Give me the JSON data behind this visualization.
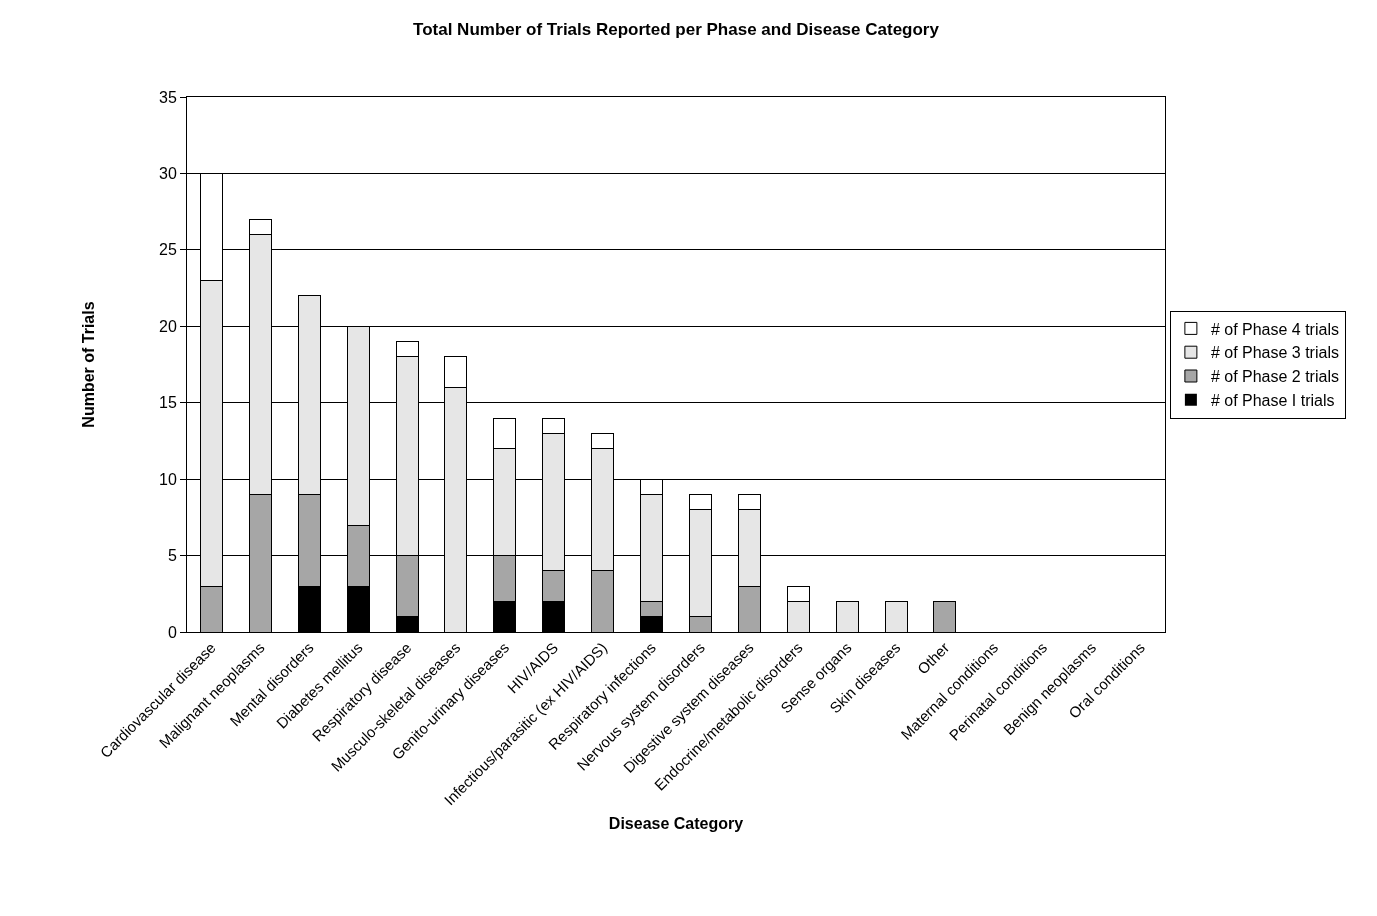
{
  "chart_data": {
    "type": "bar",
    "title": "Total Number of Trials Reported per Phase and Disease Category",
    "xlabel": "Disease Category",
    "ylabel": "Number of Trials",
    "categories": [
      "Cardiovascular disease",
      "Malignant neoplasms",
      "Mental disorders",
      "Diabetes mellitus",
      "Respiratory disease",
      "Musculo-skeletal diseases",
      "Genito-urinary diseases",
      "HIV/AIDS",
      "Infectious/parasitic (ex HIV/AIDS)",
      "Respiratory infections",
      "Nervous system disorders",
      "Digestive system diseases",
      "Endocrine/metabolic disorders",
      "Sense organs",
      "Skin diseases",
      "Other",
      "Maternal conditions",
      "Perinatal conditions",
      "Benign neoplasms",
      "Oral conditions"
    ],
    "series": [
      {
        "name": "# of Phase I trials",
        "color": "#000000",
        "values": [
          0,
          0,
          3,
          3,
          1,
          0,
          2,
          2,
          0,
          1,
          0,
          0,
          0,
          0,
          0,
          0,
          0,
          0,
          0,
          0
        ]
      },
      {
        "name": "# of Phase 2 trials",
        "color": "#a6a6a6",
        "values": [
          3,
          9,
          6,
          4,
          4,
          0,
          3,
          2,
          4,
          1,
          1,
          3,
          0,
          0,
          0,
          2,
          0,
          0,
          0,
          0
        ]
      },
      {
        "name": "# of Phase 3 trials",
        "color": "#e6e6e6",
        "values": [
          20,
          17,
          13,
          13,
          13,
          16,
          7,
          9,
          8,
          7,
          7,
          5,
          2,
          2,
          2,
          0,
          0,
          0,
          0,
          0
        ]
      },
      {
        "name": "# of Phase 4 trials",
        "color": "#ffffff",
        "values": [
          7,
          1,
          0,
          0,
          1,
          2,
          2,
          1,
          1,
          1,
          1,
          1,
          1,
          0,
          0,
          0,
          0,
          0,
          0,
          0
        ]
      }
    ],
    "stacked": true,
    "ylim": [
      0,
      35
    ],
    "yticks": [
      0,
      5,
      10,
      15,
      20,
      25,
      30,
      35
    ],
    "grid": "y",
    "legend": "right"
  }
}
